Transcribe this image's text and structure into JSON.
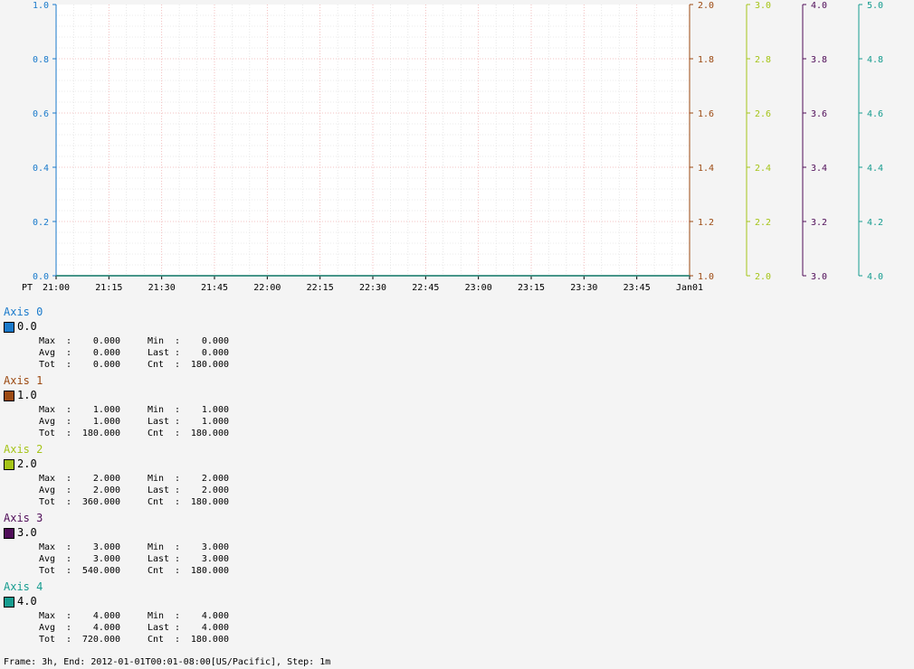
{
  "chart_data": {
    "type": "line",
    "timezone_label": "PT",
    "x_ticks": [
      "21:00",
      "21:15",
      "21:30",
      "21:45",
      "22:00",
      "22:15",
      "22:30",
      "22:45",
      "23:00",
      "23:15",
      "23:30",
      "23:45",
      "Jan01"
    ],
    "axes": [
      {
        "name": "Axis 0",
        "color": "#1a7acb",
        "ylim": [
          0.0,
          1.0
        ],
        "ticks": [
          "0.0",
          "0.2",
          "0.4",
          "0.6",
          "0.8",
          "1.0"
        ]
      },
      {
        "name": "Axis 1",
        "color": "#9c4a12",
        "ylim": [
          1.0,
          2.0
        ],
        "ticks": [
          "1.0",
          "1.2",
          "1.4",
          "1.6",
          "1.8",
          "2.0"
        ]
      },
      {
        "name": "Axis 2",
        "color": "#a5c418",
        "ylim": [
          2.0,
          3.0
        ],
        "ticks": [
          "2.0",
          "2.2",
          "2.4",
          "2.6",
          "2.8",
          "3.0"
        ]
      },
      {
        "name": "Axis 3",
        "color": "#4f0d58",
        "ylim": [
          3.0,
          4.0
        ],
        "ticks": [
          "3.0",
          "3.2",
          "3.4",
          "3.6",
          "3.8",
          "4.0"
        ]
      },
      {
        "name": "Axis 4",
        "color": "#169c8f",
        "ylim": [
          4.0,
          5.0
        ],
        "ticks": [
          "4.0",
          "4.2",
          "4.4",
          "4.6",
          "4.8",
          "5.0"
        ]
      }
    ],
    "series": [
      {
        "name": "0.0",
        "axis": 0,
        "value": 0.0,
        "stats": {
          "max": "0.000",
          "min": "0.000",
          "avg": "0.000",
          "last": "0.000",
          "tot": "0.000",
          "cnt": "180.000"
        }
      },
      {
        "name": "1.0",
        "axis": 1,
        "value": 1.0,
        "stats": {
          "max": "1.000",
          "min": "1.000",
          "avg": "1.000",
          "last": "1.000",
          "tot": "180.000",
          "cnt": "180.000"
        }
      },
      {
        "name": "2.0",
        "axis": 2,
        "value": 2.0,
        "stats": {
          "max": "2.000",
          "min": "2.000",
          "avg": "2.000",
          "last": "2.000",
          "tot": "360.000",
          "cnt": "180.000"
        }
      },
      {
        "name": "3.0",
        "axis": 3,
        "value": 3.0,
        "stats": {
          "max": "3.000",
          "min": "3.000",
          "avg": "3.000",
          "last": "3.000",
          "tot": "540.000",
          "cnt": "180.000"
        }
      },
      {
        "name": "4.0",
        "axis": 4,
        "value": 4.0,
        "stats": {
          "max": "4.000",
          "min": "4.000",
          "avg": "4.000",
          "last": "4.000",
          "tot": "720.000",
          "cnt": "180.000"
        }
      }
    ],
    "stat_labels": {
      "max": "Max",
      "min": "Min",
      "avg": "Avg",
      "last": "Last",
      "tot": "Tot",
      "cnt": "Cnt"
    },
    "grid": true
  },
  "footer": "Frame: 3h, End: 2012-01-01T00:01-08:00[US/Pacific], Step: 1m"
}
